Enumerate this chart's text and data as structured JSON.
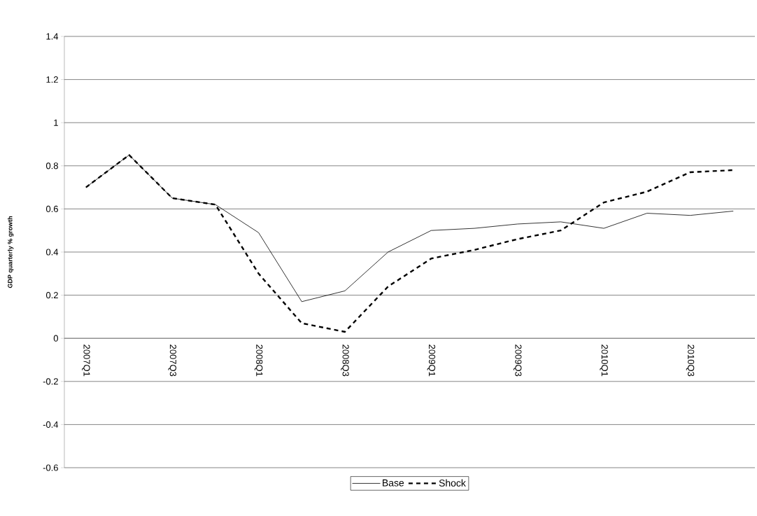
{
  "chart_data": {
    "type": "line",
    "ylabel": "GDP quarterly % growth",
    "categories": [
      "2007Q1",
      null,
      "2007Q3",
      null,
      "2008Q1",
      null,
      "2008Q3",
      null,
      "2009Q1",
      null,
      "2009Q3",
      null,
      "2010Q1",
      null,
      "2010Q3",
      null
    ],
    "series": [
      {
        "name": "Base",
        "color": "#000000",
        "line_style": "solid",
        "values": [
          0.7,
          0.85,
          0.65,
          0.62,
          0.49,
          0.17,
          0.22,
          0.4,
          0.5,
          0.51,
          0.53,
          0.54,
          0.51,
          0.58,
          0.57,
          0.59
        ]
      },
      {
        "name": "Shock",
        "color": "#000000",
        "line_style": "dashed",
        "values": [
          0.7,
          0.85,
          0.65,
          0.62,
          0.3,
          0.07,
          0.03,
          0.24,
          0.37,
          0.41,
          0.46,
          0.5,
          0.63,
          0.68,
          0.77,
          0.78
        ]
      }
    ],
    "ylim": [
      -0.6,
      1.4
    ],
    "yticks": [
      -0.6,
      -0.4,
      -0.2,
      0,
      0.2,
      0.4,
      0.6,
      0.8,
      1,
      1.2,
      1.4
    ],
    "grid": "y",
    "legend": "bottom"
  }
}
